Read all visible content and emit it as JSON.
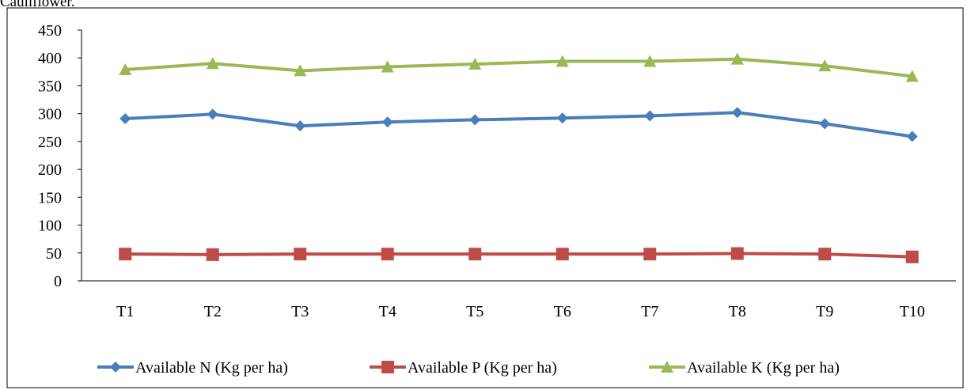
{
  "caption": "Cauliflower.",
  "chart_data": {
    "type": "line",
    "title": "",
    "xlabel": "",
    "ylabel": "",
    "categories": [
      "T1",
      "T2",
      "T3",
      "T4",
      "T5",
      "T6",
      "T7",
      "T8",
      "T9",
      "T10"
    ],
    "ylim": [
      0,
      450
    ],
    "yticks": [
      0,
      50,
      100,
      150,
      200,
      250,
      300,
      350,
      400,
      450
    ],
    "grid": false,
    "legend_position": "bottom",
    "series": [
      {
        "name": "Available N (Kg per ha)",
        "color": "#4A7EBB",
        "marker": "diamond",
        "values": [
          291,
          299,
          278,
          285,
          289,
          292,
          296,
          302,
          282,
          259
        ]
      },
      {
        "name": "Available P (Kg per ha)",
        "color": "#BE4B48",
        "marker": "square",
        "values": [
          48,
          47,
          48,
          48,
          48,
          48,
          48,
          49,
          48,
          43
        ]
      },
      {
        "name": "Available K (Kg per ha)",
        "color": "#98B954",
        "marker": "triangle",
        "values": [
          379,
          390,
          377,
          384,
          389,
          394,
          394,
          398,
          386,
          367
        ]
      }
    ]
  }
}
